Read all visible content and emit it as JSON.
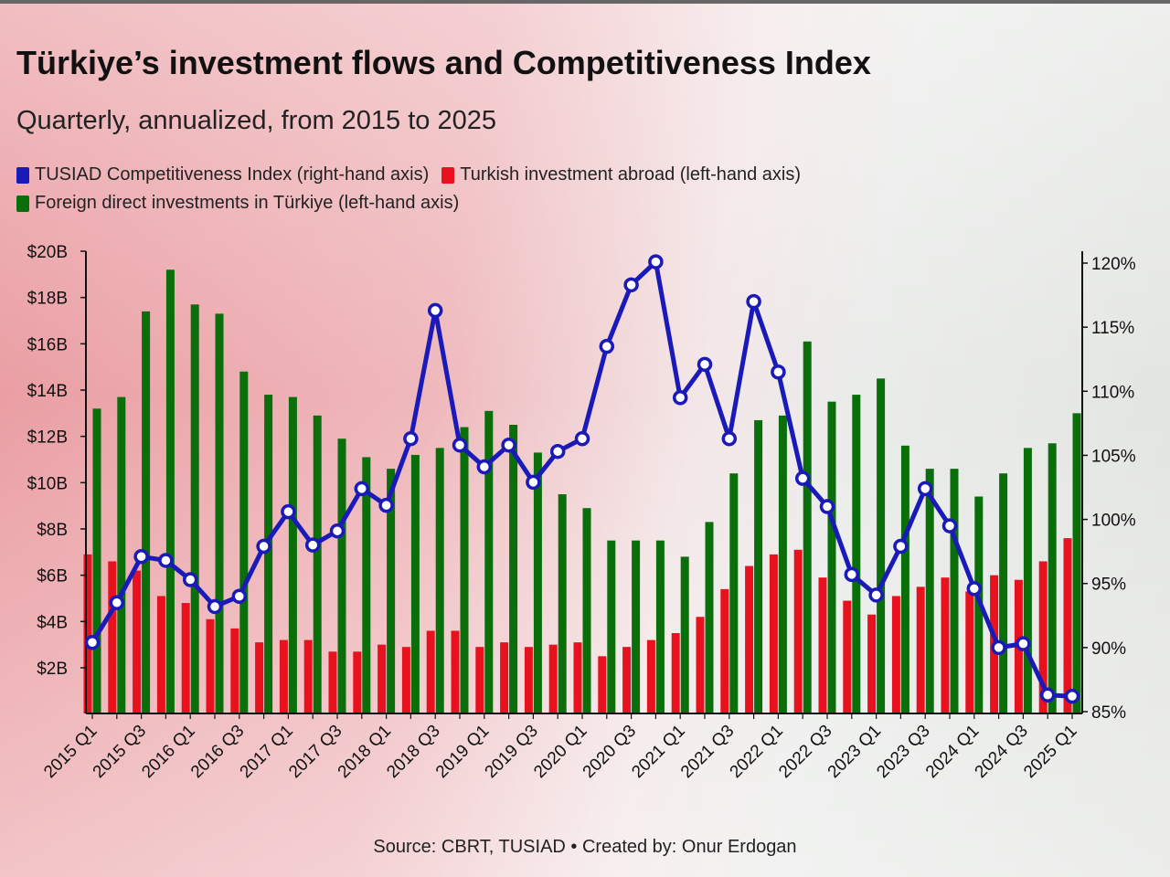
{
  "title": "Türkiye’s investment flows and Competitiveness Index",
  "subtitle": "Quarterly, annualized, from 2015 to 2025",
  "source": "Source: CBRT, TUSIAD • Created by: Onur Erdogan",
  "colors": {
    "index": "#1a1ab8",
    "abroad": "#e8121e",
    "fdi": "#0a6e0a"
  },
  "legend": {
    "index": "TUSIAD Competitiveness Index (right-hand axis)",
    "abroad": "Turkish investment abroad (left-hand axis)",
    "fdi": "Foreign direct investments in Türkiye (left-hand axis)"
  },
  "chart_data": {
    "type": "bar",
    "categories": [
      "2015 Q1",
      "2015 Q2",
      "2015 Q3",
      "2015 Q4",
      "2016 Q1",
      "2016 Q2",
      "2016 Q3",
      "2016 Q4",
      "2017 Q1",
      "2017 Q2",
      "2017 Q3",
      "2017 Q4",
      "2018 Q1",
      "2018 Q2",
      "2018 Q3",
      "2018 Q4",
      "2019 Q1",
      "2019 Q2",
      "2019 Q3",
      "2019 Q4",
      "2020 Q1",
      "2020 Q2",
      "2020 Q3",
      "2020 Q4",
      "2021 Q1",
      "2021 Q2",
      "2021 Q3",
      "2021 Q4",
      "2022 Q1",
      "2022 Q2",
      "2022 Q3",
      "2022 Q4",
      "2023 Q1",
      "2023 Q2",
      "2023 Q3",
      "2023 Q4",
      "2024 Q1",
      "2024 Q2",
      "2024 Q3",
      "2024 Q4",
      "2025 Q1"
    ],
    "tick_labels": [
      "2015 Q1",
      "",
      "2015 Q3",
      "",
      "2016 Q1",
      "",
      "2016 Q3",
      "",
      "2017 Q1",
      "",
      "2017 Q3",
      "",
      "2018 Q1",
      "",
      "2018 Q3",
      "",
      "2019 Q1",
      "",
      "2019 Q3",
      "",
      "2020 Q1",
      "",
      "2020 Q3",
      "",
      "2021 Q1",
      "",
      "2021 Q3",
      "",
      "2022 Q1",
      "",
      "2022 Q3",
      "",
      "2023 Q1",
      "",
      "2023 Q3",
      "",
      "2024 Q1",
      "",
      "2024 Q3",
      "",
      "2025 Q1"
    ],
    "series": [
      {
        "name": "Turkish investment abroad (left-hand axis)",
        "axis": "left",
        "type": "bar",
        "values": [
          6.9,
          6.6,
          6.2,
          5.1,
          4.8,
          4.1,
          3.7,
          3.1,
          3.2,
          3.2,
          2.7,
          2.7,
          3.0,
          2.9,
          3.6,
          3.6,
          2.9,
          3.1,
          2.9,
          3.0,
          3.1,
          2.5,
          2.9,
          3.2,
          3.5,
          4.2,
          5.4,
          6.4,
          6.9,
          7.1,
          5.9,
          4.9,
          4.3,
          5.1,
          5.5,
          5.9,
          5.3,
          6.0,
          5.8,
          6.6,
          7.6
        ]
      },
      {
        "name": "Foreign direct investments in Türkiye (left-hand axis)",
        "axis": "left",
        "type": "bar",
        "values": [
          13.2,
          13.7,
          17.4,
          19.2,
          17.7,
          17.3,
          14.8,
          13.8,
          13.7,
          12.9,
          11.9,
          11.1,
          10.6,
          11.2,
          11.5,
          12.4,
          13.1,
          12.5,
          11.3,
          9.5,
          8.9,
          7.5,
          7.5,
          7.5,
          6.8,
          8.3,
          10.4,
          12.7,
          12.9,
          16.1,
          13.5,
          13.8,
          14.5,
          11.6,
          10.6,
          10.6,
          9.4,
          10.4,
          11.5,
          11.7,
          13.0
        ]
      },
      {
        "name": "TUSIAD Competitiveness Index (right-hand axis)",
        "axis": "right",
        "type": "line",
        "values": [
          90.4,
          93.5,
          97.1,
          96.8,
          95.3,
          93.2,
          94.0,
          97.9,
          100.6,
          98.0,
          99.1,
          102.4,
          101.1,
          106.3,
          116.3,
          105.8,
          104.1,
          105.8,
          102.9,
          105.3,
          106.3,
          113.5,
          118.3,
          120.1,
          109.5,
          112.1,
          106.3,
          117.0,
          111.5,
          103.2,
          101.0,
          95.7,
          94.1,
          97.9,
          102.4,
          99.5,
          94.6,
          90.0,
          90.3,
          86.3,
          86.2
        ]
      }
    ],
    "left_axis": {
      "ticks": [
        "$2B",
        "$4B",
        "$6B",
        "$8B",
        "$10B",
        "$12B",
        "$14B",
        "$16B",
        "$18B",
        "$20B"
      ],
      "tick_values": [
        2,
        4,
        6,
        8,
        10,
        12,
        14,
        16,
        18,
        20
      ],
      "range": [
        0,
        20
      ]
    },
    "right_axis": {
      "ticks": [
        "85%",
        "90%",
        "95%",
        "100%",
        "105%",
        "110%",
        "115%",
        "120%"
      ],
      "tick_values": [
        85,
        90,
        95,
        100,
        105,
        110,
        115,
        120
      ],
      "range": [
        85,
        120.3
      ]
    },
    "legend_position": "top-left",
    "grid": false
  }
}
